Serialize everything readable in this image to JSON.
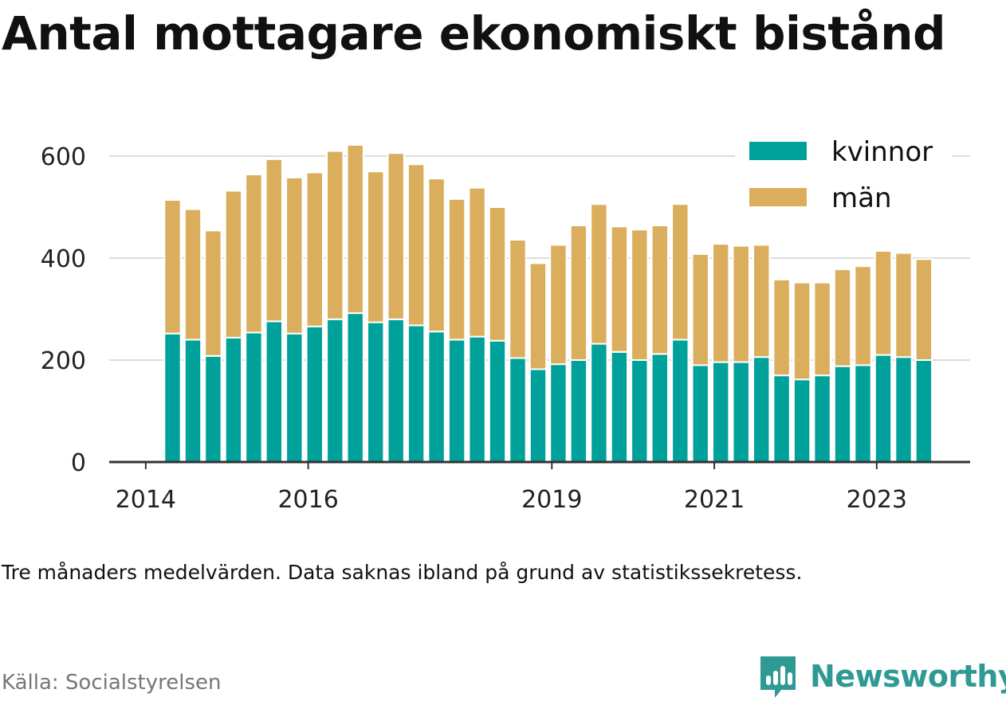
{
  "chart_data": {
    "type": "bar",
    "stacked": true,
    "title": "Antal mottagare ekonomiskt bistånd",
    "note": "Tre månaders medelvärden. Data saknas ibland på grund av statistikssekretess.",
    "source": "Källa: Socialstyrelsen",
    "brand": "Newsworthy",
    "x_ticks": [
      {
        "label": "2014",
        "year": 2014.0
      },
      {
        "label": "2016",
        "year": 2016.0
      },
      {
        "label": "2019",
        "year": 2019.0
      },
      {
        "label": "2021",
        "year": 2021.0
      },
      {
        "label": "2023",
        "year": 2023.0
      }
    ],
    "xlim": [
      2013.55,
      2024.15
    ],
    "ylim": [
      0,
      650
    ],
    "y_ticks": [
      0,
      200,
      400,
      600
    ],
    "grid": true,
    "legend_position": "top-right",
    "x": [
      2014.33,
      2014.58,
      2014.83,
      2015.08,
      2015.33,
      2015.58,
      2015.83,
      2016.08,
      2016.33,
      2016.58,
      2016.83,
      2017.08,
      2017.33,
      2017.58,
      2017.83,
      2018.08,
      2018.33,
      2018.58,
      2018.83,
      2019.08,
      2019.33,
      2019.58,
      2019.83,
      2020.08,
      2020.33,
      2020.58,
      2020.83,
      2021.08,
      2021.33,
      2021.58,
      2021.83,
      2022.08,
      2022.33,
      2022.58,
      2022.83,
      2023.08,
      2023.33,
      2023.58
    ],
    "series": [
      {
        "name": "kvinnor",
        "color": "#00a19a",
        "values": [
          252,
          240,
          208,
          244,
          254,
          276,
          252,
          266,
          280,
          292,
          274,
          280,
          268,
          256,
          240,
          246,
          238,
          204,
          182,
          192,
          200,
          232,
          216,
          200,
          212,
          240,
          190,
          196,
          196,
          206,
          170,
          162,
          170,
          188,
          190,
          210,
          206,
          200
        ]
      },
      {
        "name": "män",
        "color": "#dbae5d",
        "values": [
          262,
          256,
          246,
          288,
          310,
          318,
          306,
          302,
          330,
          330,
          296,
          326,
          316,
          300,
          276,
          292,
          262,
          232,
          208,
          234,
          264,
          274,
          246,
          256,
          252,
          266,
          218,
          232,
          228,
          220,
          188,
          190,
          182,
          190,
          194,
          204,
          204,
          198
        ]
      }
    ]
  }
}
